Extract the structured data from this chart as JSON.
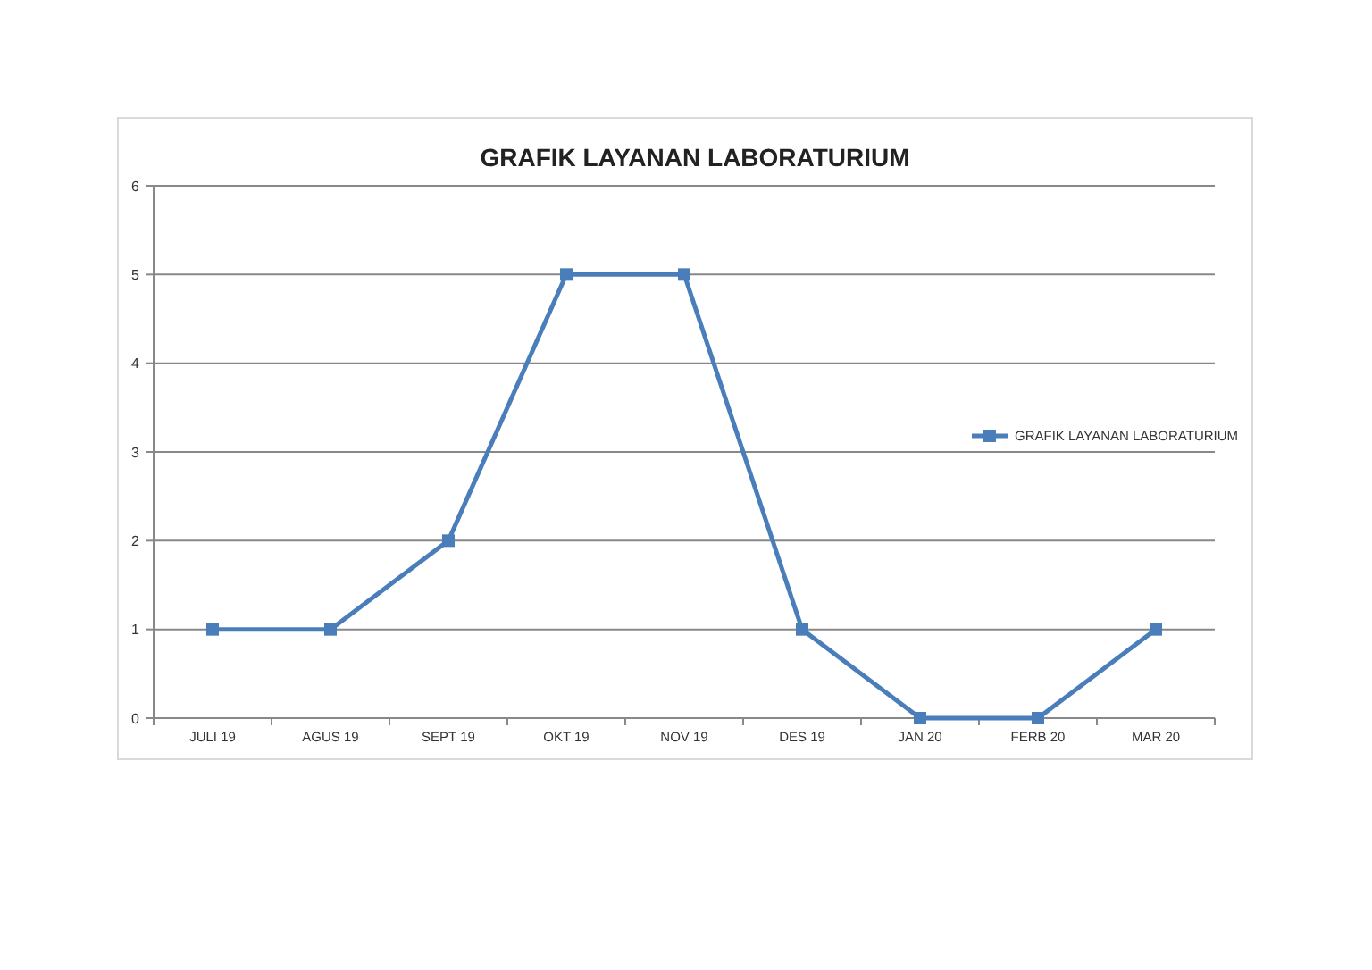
{
  "chart_data": {
    "type": "line",
    "title": "GRAFIK LAYANAN LABORATURIUM",
    "categories": [
      "JULI 19",
      "AGUS 19",
      "SEPT 19",
      "OKT 19",
      "NOV 19",
      "DES 19",
      "JAN 20",
      "FERB 20",
      "MAR 20"
    ],
    "series": [
      {
        "name": "GRAFIK LAYANAN LABORATURIUM",
        "color": "#4a7ebb",
        "values": [
          1,
          1,
          2,
          5,
          5,
          1,
          0,
          0,
          1
        ]
      }
    ],
    "ylim": [
      0,
      6
    ],
    "yticks": [
      0,
      1,
      2,
      3,
      4,
      5,
      6
    ],
    "grid": "y",
    "legend": "right",
    "marker": "square",
    "line_style": "solid"
  }
}
